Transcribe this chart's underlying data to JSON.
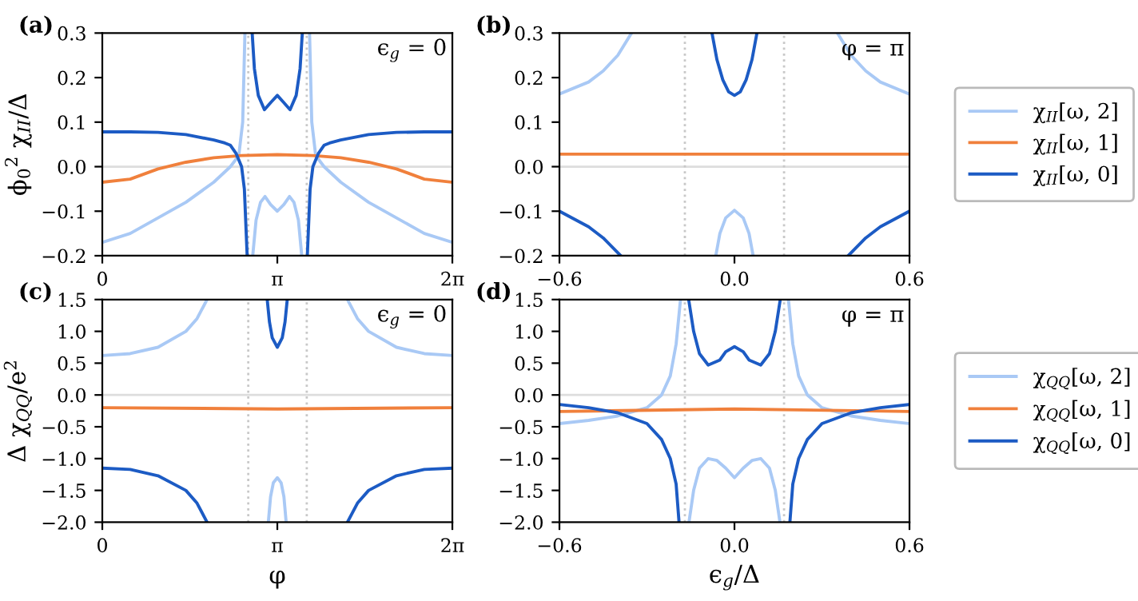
{
  "chart_data": [
    {
      "type": "line",
      "ylabel": "ϕ$_{0}$$^{2}$ χ$_{II}$/Δ",
      "annotations": [
        "(a)",
        "ϵ$_{g}$ = 0"
      ],
      "xlim": [
        0,
        6.2832
      ],
      "xticks": [
        {
          "value": 0,
          "label": "0"
        },
        {
          "value": 3.1416,
          "label": "π"
        },
        {
          "value": 6.2832,
          "label": "2π"
        }
      ],
      "ylim": [
        -0.2,
        0.3
      ],
      "yticks": [
        {
          "value": -0.2,
          "label": "−0.2"
        },
        {
          "value": -0.1,
          "label": "−0.1"
        },
        {
          "value": 0,
          "label": "0.0"
        },
        0.1,
        0.2,
        0.3
      ],
      "ref_lines": [
        {
          "axis": "y",
          "value": 0,
          "color": "#dddddd",
          "line_style": "solid"
        },
        {
          "axis": "x",
          "value": 2.62,
          "color": "#c8c8c8",
          "line_style": "dotted"
        },
        {
          "axis": "x",
          "value": 3.67,
          "color": "#c8c8c8",
          "line_style": "dotted"
        }
      ],
      "series": [
        {
          "color": "#a9c9f5",
          "x": [
            0,
            0.5,
            1,
            1.5,
            2,
            2.3,
            2.45,
            2.52,
            2.56,
            2.63,
            2.7,
            2.76,
            2.84,
            2.92,
            3.02,
            3.1416,
            3.26,
            3.36,
            3.44,
            3.52,
            3.58,
            3.65,
            3.72,
            3.76,
            3.83,
            3.98,
            4.28,
            4.78,
            5.28,
            5.78,
            6.2832
          ],
          "values": [
            -0.17,
            -0.15,
            -0.115,
            -0.08,
            -0.035,
            0.0,
            0.025,
            0.1,
            0.3,
            null,
            -0.2,
            -0.12,
            -0.08,
            -0.067,
            -0.085,
            -0.1,
            -0.085,
            -0.067,
            -0.08,
            -0.12,
            -0.2,
            null,
            0.3,
            0.1,
            0.025,
            0.0,
            -0.035,
            -0.08,
            -0.115,
            -0.15,
            -0.17
          ]
        },
        {
          "color": "#f0803c",
          "x": [
            0,
            0.5,
            1,
            1.5,
            2,
            2.5,
            3.1416,
            3.78,
            4.28,
            4.78,
            5.28,
            5.78,
            6.2832
          ],
          "values": [
            -0.035,
            -0.028,
            -0.005,
            0.01,
            0.02,
            0.025,
            0.027,
            0.025,
            0.02,
            0.01,
            -0.005,
            -0.028,
            -0.035
          ]
        },
        {
          "color": "#1c5bc4",
          "x": [
            0,
            0.5,
            1,
            1.5,
            2,
            2.2,
            2.3,
            2.4,
            2.5,
            2.55,
            2.6,
            2.65,
            2.69,
            2.73,
            2.8,
            2.91,
            3.03,
            3.1416,
            3.25,
            3.37,
            3.48,
            3.55,
            3.59,
            3.63,
            3.68,
            3.73,
            3.78,
            3.88,
            3.98,
            4.08,
            4.28,
            4.78,
            5.28,
            5.78,
            6.2832
          ],
          "values": [
            0.078,
            0.078,
            0.077,
            0.072,
            0.06,
            0.053,
            0.048,
            0.03,
            0.0,
            -0.05,
            -0.2,
            null,
            0.3,
            0.22,
            0.16,
            0.128,
            0.145,
            0.16,
            0.145,
            0.128,
            0.16,
            0.22,
            0.3,
            null,
            -0.2,
            -0.05,
            0.0,
            0.03,
            0.048,
            0.053,
            0.06,
            0.072,
            0.077,
            0.078,
            0.078
          ]
        }
      ]
    },
    {
      "type": "line",
      "annotations": [
        "(b)",
        "φ = π"
      ],
      "legend": "right",
      "xlim": [
        -0.6,
        0.6
      ],
      "xticks": [
        {
          "value": -0.6,
          "label": "−0.6"
        },
        {
          "value": 0,
          "label": "0.0"
        },
        0.6
      ],
      "ylim": [
        -0.2,
        0.3
      ],
      "yticks": [
        {
          "value": -0.2,
          "label": "−0.2"
        },
        {
          "value": -0.1,
          "label": "−0.1"
        },
        {
          "value": 0,
          "label": "0.0"
        },
        0.1,
        0.2,
        0.3
      ],
      "ref_lines": [
        {
          "axis": "y",
          "value": 0,
          "color": "#dddddd",
          "line_style": "solid"
        },
        {
          "axis": "x",
          "value": -0.17,
          "color": "#c8c8c8",
          "line_style": "dotted"
        },
        {
          "axis": "x",
          "value": 0.17,
          "color": "#c8c8c8",
          "line_style": "dotted"
        }
      ],
      "series": [
        {
          "name": "χ$_{II}$[ω, 2]",
          "color": "#a9c9f5",
          "x": [
            -0.6,
            -0.5,
            -0.45,
            -0.4,
            -0.353,
            -0.2,
            -0.064,
            -0.05,
            -0.03,
            0,
            0.03,
            0.05,
            0.064,
            0.2,
            0.353,
            0.4,
            0.45,
            0.5,
            0.6
          ],
          "values": [
            0.163,
            0.19,
            0.215,
            0.25,
            0.3,
            null,
            -0.2,
            -0.15,
            -0.115,
            -0.098,
            -0.115,
            -0.15,
            -0.2,
            null,
            0.3,
            0.25,
            0.215,
            0.19,
            0.163
          ]
        },
        {
          "name": "χ$_{II}$[ω, 1]",
          "color": "#f0803c",
          "x": [
            -0.6,
            0,
            0.6
          ],
          "values": [
            0.028,
            0.028,
            0.028
          ]
        },
        {
          "name": "χ$_{II}$[ω, 0]",
          "color": "#1c5bc4",
          "x": [
            -0.6,
            -0.5,
            -0.45,
            -0.39,
            -0.2,
            -0.077,
            -0.06,
            -0.04,
            -0.02,
            0,
            0.02,
            0.04,
            0.06,
            0.077,
            0.2,
            0.39,
            0.45,
            0.5,
            0.6
          ],
          "values": [
            -0.1,
            -0.135,
            -0.16,
            -0.2,
            null,
            0.3,
            0.24,
            0.195,
            0.168,
            0.16,
            0.168,
            0.195,
            0.24,
            0.3,
            null,
            -0.2,
            -0.16,
            -0.135,
            -0.1
          ]
        }
      ]
    },
    {
      "type": "line",
      "ylabel": "Δ χ$_{QQ}$/e$^{2}$",
      "xlabel": "φ",
      "annotations": [
        "(c)",
        "ϵ$_{g}$ = 0"
      ],
      "xlim": [
        0,
        6.2832
      ],
      "xticks": [
        {
          "value": 0,
          "label": "0"
        },
        {
          "value": 3.1416,
          "label": "π"
        },
        {
          "value": 6.2832,
          "label": "2π"
        }
      ],
      "ylim": [
        -2.0,
        1.5
      ],
      "yticks": [
        {
          "value": -2.0,
          "label": "−2.0"
        },
        {
          "value": -1.5,
          "label": "−1.5"
        },
        {
          "value": -1.0,
          "label": "−1.0"
        },
        {
          "value": -0.5,
          "label": "−0.5"
        },
        {
          "value": 0,
          "label": "0.0"
        },
        0.5,
        {
          "value": 1,
          "label": "1.0"
        },
        1.5
      ],
      "ref_lines": [
        {
          "axis": "y",
          "value": 0,
          "color": "#dddddd",
          "line_style": "solid"
        },
        {
          "axis": "x",
          "value": 2.62,
          "color": "#c8c8c8",
          "line_style": "dotted"
        },
        {
          "axis": "x",
          "value": 3.67,
          "color": "#c8c8c8",
          "line_style": "dotted"
        }
      ],
      "series": [
        {
          "color": "#a9c9f5",
          "x": [
            0,
            0.5,
            1,
            1.5,
            1.7,
            1.88,
            2.5,
            2.98,
            3.02,
            3.07,
            3.1416,
            3.21,
            3.26,
            3.3,
            3.8,
            4.4,
            4.58,
            4.78,
            5.28,
            5.78,
            6.2832
          ],
          "values": [
            0.62,
            0.65,
            0.75,
            1.0,
            1.2,
            1.5,
            null,
            -2.0,
            -1.6,
            -1.38,
            -1.3,
            -1.38,
            -1.6,
            -2.0,
            null,
            1.5,
            1.2,
            1.0,
            0.75,
            0.65,
            0.62
          ]
        },
        {
          "color": "#f0803c",
          "x": [
            0,
            3.1416,
            6.2832
          ],
          "values": [
            -0.2,
            -0.22,
            -0.2
          ]
        },
        {
          "color": "#1c5bc4",
          "x": [
            0,
            0.5,
            1,
            1.5,
            1.7,
            1.88,
            2.5,
            2.96,
            3.0,
            3.05,
            3.1416,
            3.23,
            3.28,
            3.32,
            3.8,
            4.4,
            4.58,
            4.78,
            5.28,
            5.78,
            6.2832
          ],
          "values": [
            -1.15,
            -1.17,
            -1.27,
            -1.5,
            -1.7,
            -2.0,
            null,
            1.5,
            1.15,
            0.9,
            0.75,
            0.9,
            1.15,
            1.5,
            null,
            -2.0,
            -1.7,
            -1.5,
            -1.27,
            -1.17,
            -1.15
          ]
        }
      ]
    },
    {
      "type": "line",
      "xlabel": "ϵ$_{g}$/Δ",
      "annotations": [
        "(d)",
        "φ = π"
      ],
      "legend": "right",
      "xlim": [
        -0.6,
        0.6
      ],
      "xticks": [
        {
          "value": -0.6,
          "label": "−0.6"
        },
        {
          "value": 0,
          "label": "0.0"
        },
        0.6
      ],
      "ylim": [
        -2.0,
        1.5
      ],
      "yticks": [
        {
          "value": -2.0,
          "label": "−2.0"
        },
        {
          "value": -1.5,
          "label": "−1.5"
        },
        {
          "value": -1.0,
          "label": "−1.0"
        },
        {
          "value": -0.5,
          "label": "−0.5"
        },
        {
          "value": 0,
          "label": "0.0"
        },
        0.5,
        {
          "value": 1,
          "label": "1.0"
        },
        1.5
      ],
      "ref_lines": [
        {
          "axis": "y",
          "value": 0,
          "color": "#dddddd",
          "line_style": "solid"
        },
        {
          "axis": "x",
          "value": -0.17,
          "color": "#c8c8c8",
          "line_style": "dotted"
        },
        {
          "axis": "x",
          "value": 0.17,
          "color": "#c8c8c8",
          "line_style": "dotted"
        }
      ],
      "series": [
        {
          "name": "χ$_{QQ}$[ω, 2]",
          "color": "#a9c9f5",
          "x": [
            -0.6,
            -0.5,
            -0.4,
            -0.3,
            -0.25,
            -0.22,
            -0.2,
            -0.185,
            -0.17,
            -0.156,
            -0.14,
            -0.12,
            -0.09,
            -0.06,
            -0.03,
            0,
            0.03,
            0.06,
            0.09,
            0.12,
            0.14,
            0.156,
            0.17,
            0.185,
            0.2,
            0.22,
            0.25,
            0.3,
            0.4,
            0.5,
            0.6
          ],
          "values": [
            -0.45,
            -0.4,
            -0.33,
            -0.2,
            0.0,
            0.3,
            0.8,
            1.5,
            null,
            -2.0,
            -1.5,
            -1.15,
            -1.0,
            -1.03,
            -1.15,
            -1.3,
            -1.15,
            -1.03,
            -1.0,
            -1.15,
            -1.5,
            -2.0,
            null,
            1.5,
            0.8,
            0.3,
            0.0,
            -0.2,
            -0.33,
            -0.4,
            -0.45
          ]
        },
        {
          "name": "χ$_{QQ}$[ω, 1]",
          "color": "#f0803c",
          "x": [
            -0.6,
            0,
            0.6
          ],
          "values": [
            -0.26,
            -0.22,
            -0.26
          ]
        },
        {
          "name": "χ$_{QQ}$[ω, 0]",
          "color": "#1c5bc4",
          "x": [
            -0.6,
            -0.5,
            -0.4,
            -0.3,
            -0.25,
            -0.22,
            -0.2,
            -0.19,
            -0.17,
            -0.157,
            -0.14,
            -0.12,
            -0.09,
            -0.05,
            -0.03,
            0,
            0.03,
            0.05,
            0.09,
            0.12,
            0.14,
            0.157,
            0.17,
            0.19,
            0.2,
            0.22,
            0.25,
            0.3,
            0.4,
            0.5,
            0.6
          ],
          "values": [
            -0.15,
            -0.2,
            -0.28,
            -0.45,
            -0.7,
            -1.0,
            -1.4,
            -2.0,
            null,
            1.5,
            1.0,
            0.65,
            0.47,
            0.55,
            0.68,
            0.76,
            0.68,
            0.55,
            0.47,
            0.65,
            1.0,
            1.5,
            null,
            -2.0,
            -1.4,
            -1.0,
            -0.7,
            -0.45,
            -0.28,
            -0.2,
            -0.15
          ]
        }
      ]
    }
  ]
}
